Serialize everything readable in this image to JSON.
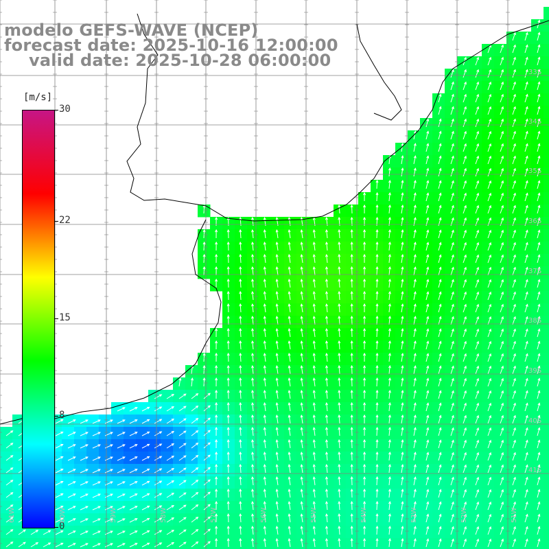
{
  "title": {
    "line1": "modelo GEFS-WAVE (NCEP)",
    "line2": "forecast date: 2025-10-16 12:00:00",
    "line3": "valid date: 2025-10-28 06:00:00"
  },
  "colorbar": {
    "unit": "[m/s]",
    "min": 0,
    "max": 30,
    "ticks": [
      "30",
      "22",
      "15",
      "8",
      "0"
    ],
    "tick_values": [
      30,
      22,
      15,
      8,
      0
    ],
    "colors": [
      "#0000ff",
      "#00ffff",
      "#00ff00",
      "#ffff00",
      "#ff0000",
      "#c71585"
    ]
  },
  "map": {
    "land_color": "#ffffff",
    "coast_color": "#000000",
    "grid_color": "#808080",
    "lon_labels": [
      "61W",
      "60W",
      "59W",
      "58W",
      "57W",
      "56W",
      "55W",
      "54W",
      "53W",
      "52W",
      "51W"
    ],
    "lat_labels": [
      "33S",
      "34S",
      "35S",
      "36S",
      "37S",
      "38S",
      "39S",
      "40S",
      "41S"
    ]
  }
}
